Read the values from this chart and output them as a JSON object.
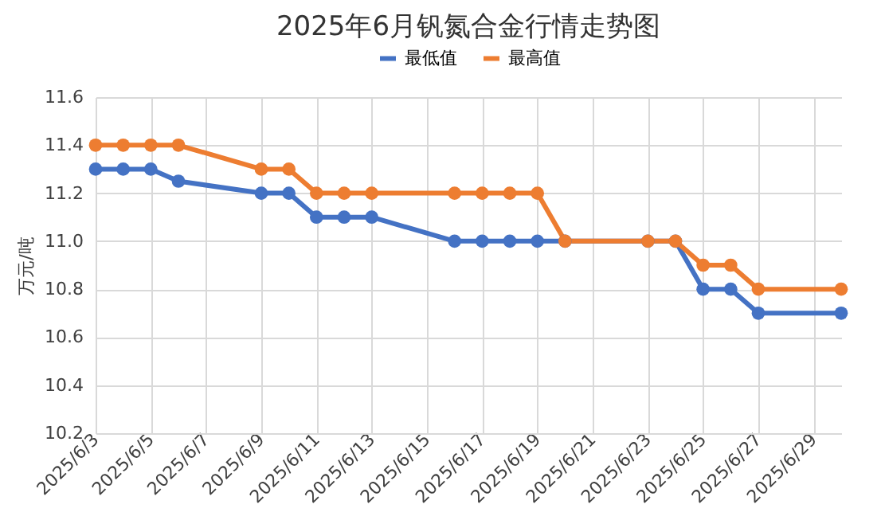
{
  "chart_data": {
    "type": "line",
    "title": "2025年6月钒氮合金行情走势图",
    "ylabel": "万元/吨",
    "x": [
      "2025-06-03",
      "2025-06-04",
      "2025-06-05",
      "2025-06-06",
      "2025-06-09",
      "2025-06-10",
      "2025-06-11",
      "2025-06-12",
      "2025-06-13",
      "2025-06-16",
      "2025-06-17",
      "2025-06-18",
      "2025-06-19",
      "2025-06-20",
      "2025-06-23",
      "2025-06-24",
      "2025-06-25",
      "2025-06-26",
      "2025-06-27",
      "2025-06-30"
    ],
    "series": [
      {
        "name": "最低值",
        "color": "#4472c4",
        "values": [
          11.3,
          11.3,
          11.3,
          11.25,
          11.2,
          11.2,
          11.1,
          11.1,
          11.1,
          11.0,
          11.0,
          11.0,
          11.0,
          11.0,
          11.0,
          11.0,
          10.8,
          10.8,
          10.7,
          10.7
        ]
      },
      {
        "name": "最高值",
        "color": "#ed7d31",
        "values": [
          11.4,
          11.4,
          11.4,
          11.4,
          11.3,
          11.3,
          11.2,
          11.2,
          11.2,
          11.2,
          11.2,
          11.2,
          11.2,
          11.0,
          11.0,
          11.0,
          10.9,
          10.9,
          10.8,
          10.8
        ]
      }
    ],
    "xlim": [
      "2025-06-03",
      "2025-06-30"
    ],
    "xticks": [
      {
        "value": "2025-06-03",
        "label": "2025/6/3"
      },
      {
        "value": "2025-06-05",
        "label": "2025/6/5"
      },
      {
        "value": "2025-06-07",
        "label": "2025/6/7"
      },
      {
        "value": "2025-06-09",
        "label": "2025/6/9"
      },
      {
        "value": "2025-06-11",
        "label": "2025/6/11"
      },
      {
        "value": "2025-06-13",
        "label": "2025/6/13"
      },
      {
        "value": "2025-06-15",
        "label": "2025/6/15"
      },
      {
        "value": "2025-06-17",
        "label": "2025/6/17"
      },
      {
        "value": "2025-06-19",
        "label": "2025/6/19"
      },
      {
        "value": "2025-06-21",
        "label": "2025/6/21"
      },
      {
        "value": "2025-06-23",
        "label": "2025/6/23"
      },
      {
        "value": "2025-06-25",
        "label": "2025/6/25"
      },
      {
        "value": "2025-06-27",
        "label": "2025/6/27"
      },
      {
        "value": "2025-06-29",
        "label": "2025/6/29"
      }
    ],
    "ylim": [
      10.2,
      11.6
    ],
    "yticks": [
      {
        "value": 10.2,
        "label": "10.2"
      },
      {
        "value": 10.4,
        "label": "10.4"
      },
      {
        "value": 10.6,
        "label": "10.6"
      },
      {
        "value": 10.8,
        "label": "10.8"
      },
      {
        "value": 11,
        "label": "11.0"
      },
      {
        "value": 11.2,
        "label": "11.2"
      },
      {
        "value": 11.4,
        "label": "11.4"
      },
      {
        "value": 11.6,
        "label": "11.6"
      }
    ],
    "grid": true,
    "legend": "top",
    "marker": "circle",
    "line_style": "solid"
  }
}
